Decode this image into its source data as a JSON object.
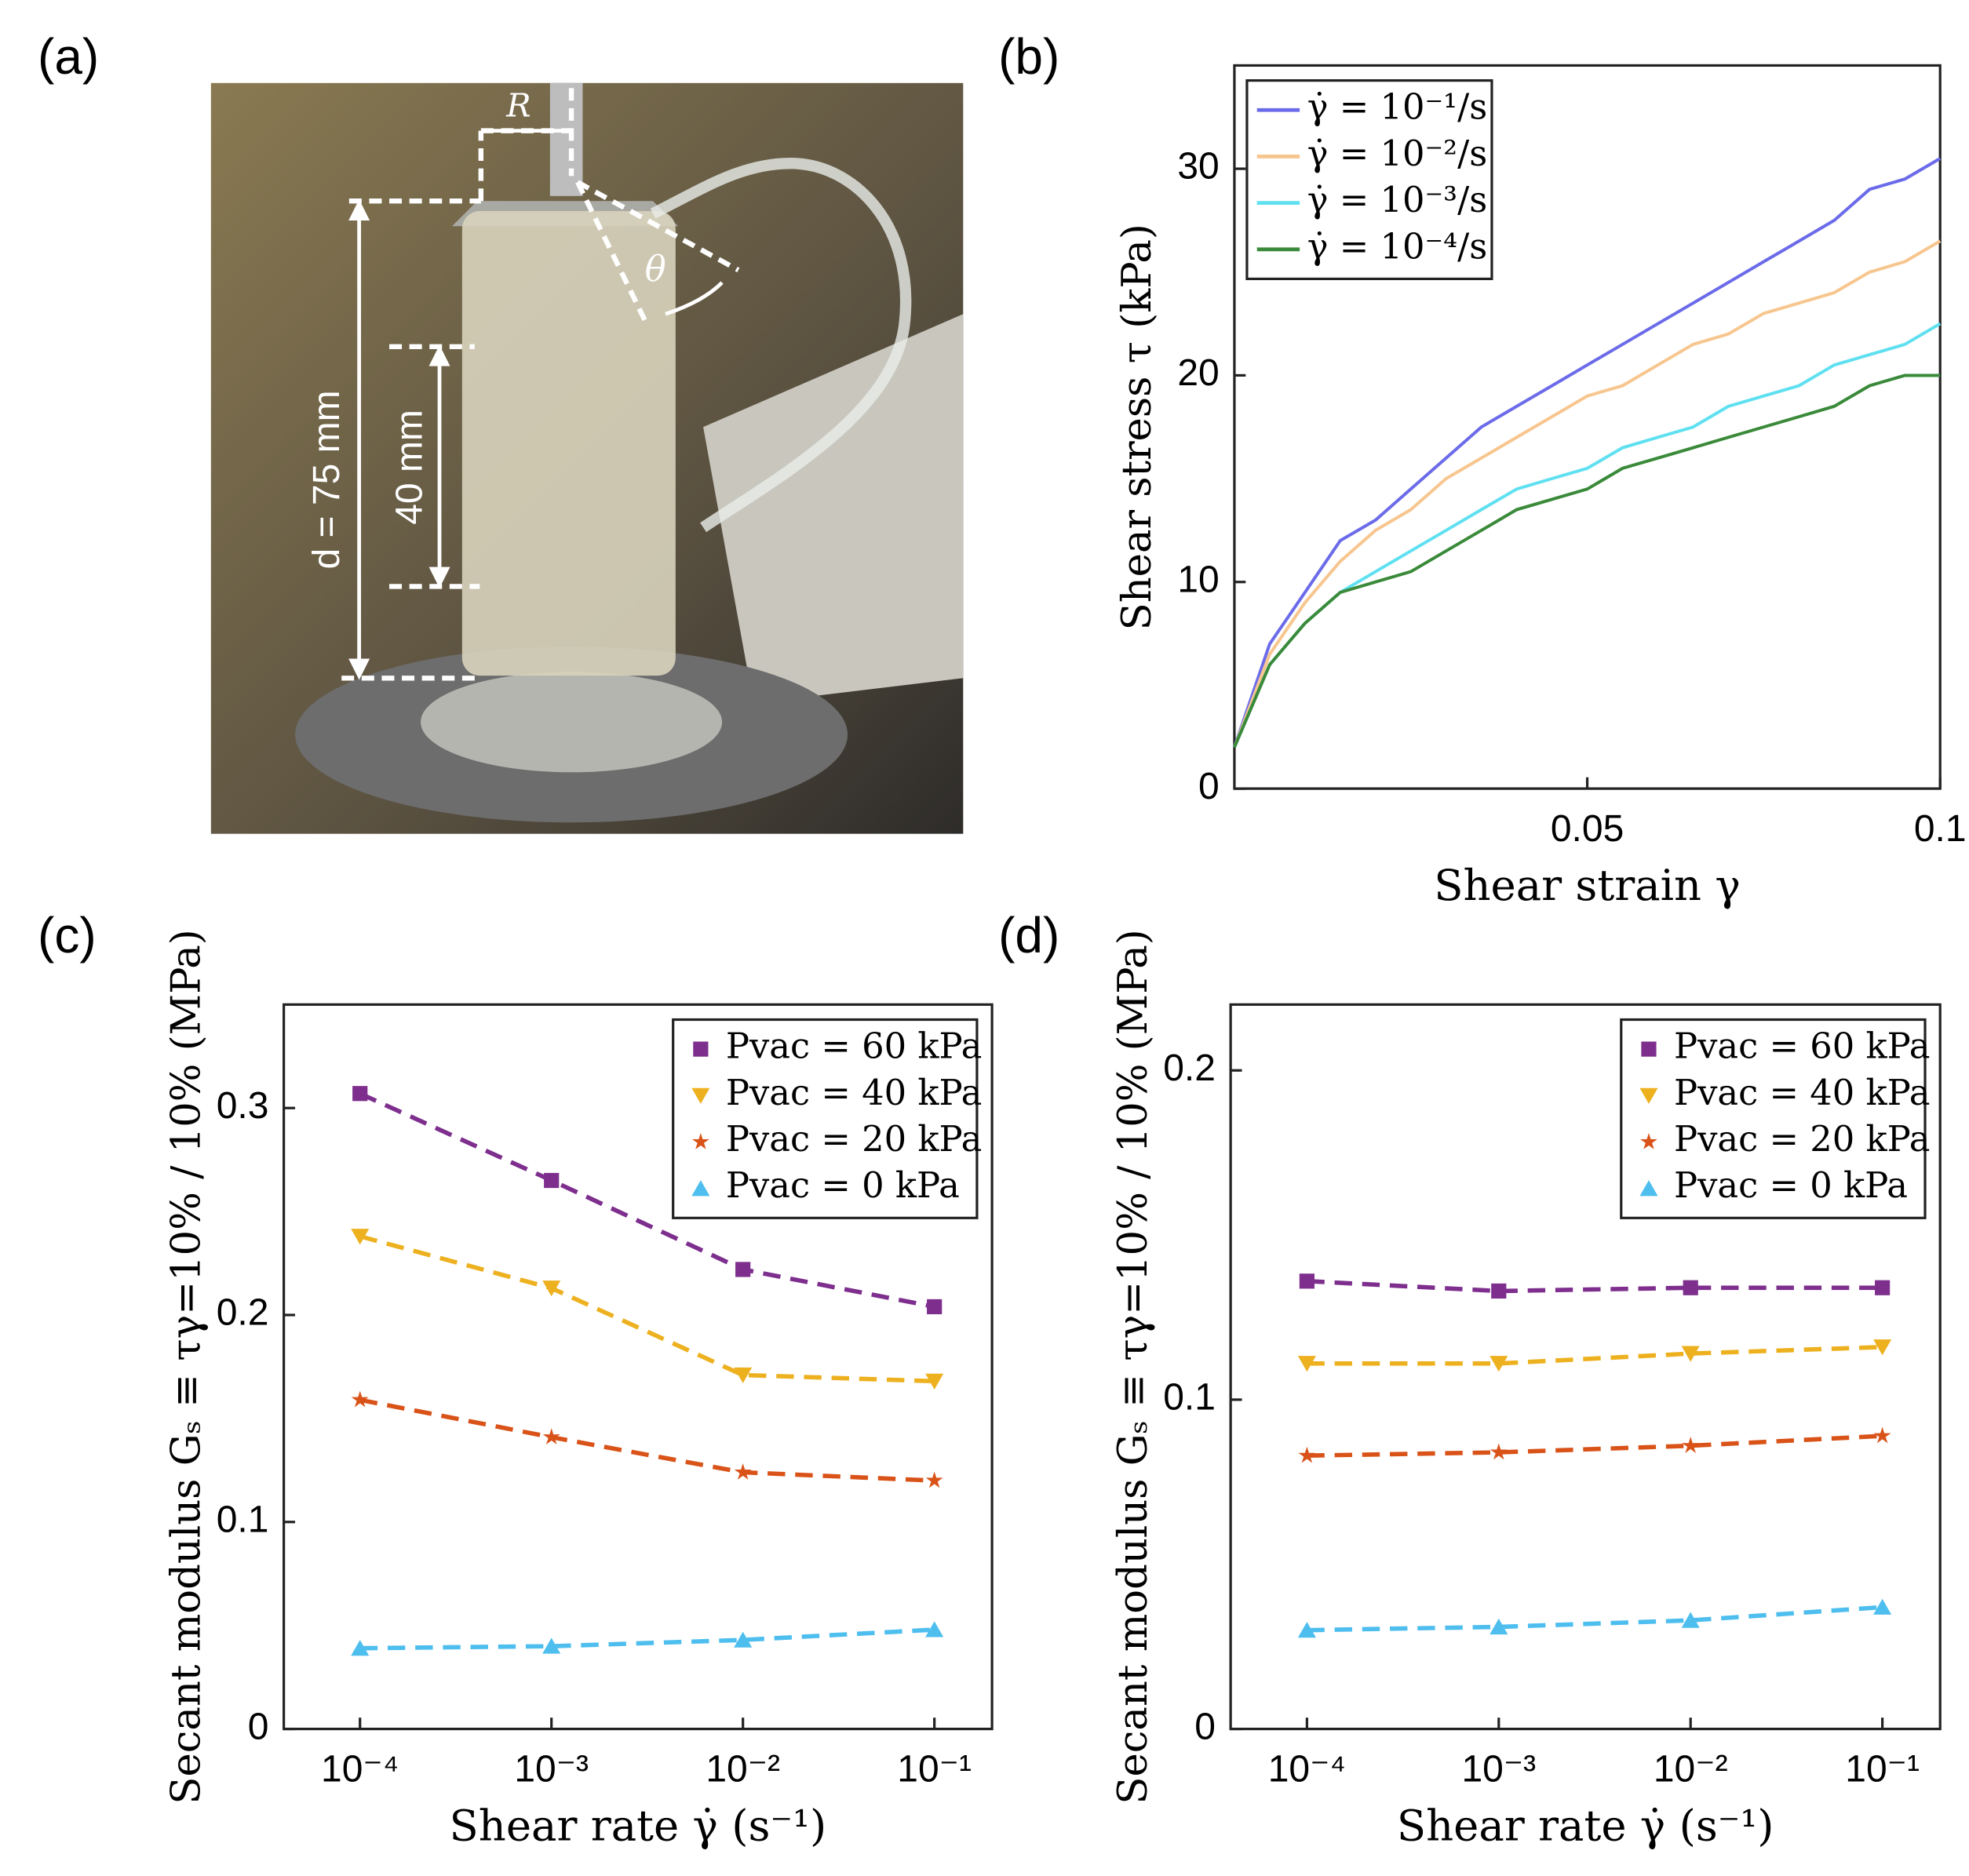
{
  "panels": [
    "(a)",
    "(b)",
    "(c)",
    "(d)"
  ],
  "photo": {
    "labels": [
      "R",
      "θ",
      "d = 75 mm",
      "40 mm"
    ]
  },
  "chart_data": [
    {
      "type": "line",
      "ylabel": "Shear stress τ (kPa)",
      "xlabel": "Shear strain γ",
      "x": [
        0,
        0.005,
        0.01,
        0.015,
        0.02,
        0.025,
        0.03,
        0.035,
        0.04,
        0.045,
        0.05,
        0.055,
        0.06,
        0.065,
        0.07,
        0.075,
        0.08,
        0.085,
        0.09,
        0.095,
        0.1
      ],
      "series": [
        {
          "name": "γ̇ = 10⁻¹/s",
          "color": "#6b6bea",
          "values": [
            2,
            7,
            9.5,
            12,
            13,
            14.5,
            16,
            17.5,
            18.5,
            19.5,
            20.5,
            21.5,
            22.5,
            23.5,
            24.5,
            25.5,
            26.5,
            27.5,
            29,
            29.5,
            30.5
          ]
        },
        {
          "name": "γ̇ = 10⁻²/s",
          "color": "#f7c68f",
          "values": [
            2,
            6.5,
            9,
            11,
            12.5,
            13.5,
            15,
            16,
            17,
            18,
            19,
            19.5,
            20.5,
            21.5,
            22,
            23,
            23.5,
            24,
            25,
            25.5,
            26.5
          ]
        },
        {
          "name": "γ̇ = 10⁻³/s",
          "color": "#5fe0f0",
          "values": [
            2,
            6,
            8,
            9.5,
            10.5,
            11.5,
            12.5,
            13.5,
            14.5,
            15,
            15.5,
            16.5,
            17,
            17.5,
            18.5,
            19,
            19.5,
            20.5,
            21,
            21.5,
            22.5
          ]
        },
        {
          "name": "γ̇ = 10⁻⁴/s",
          "color": "#3a8a3a",
          "values": [
            2,
            6,
            8,
            9.5,
            10,
            10.5,
            11.5,
            12.5,
            13.5,
            14,
            14.5,
            15.5,
            16,
            16.5,
            17,
            17.5,
            18,
            18.5,
            19.5,
            20,
            20
          ]
        }
      ],
      "xlim": [
        0,
        0.1
      ],
      "ylim": [
        0,
        35
      ],
      "xticks": [
        0.05,
        0.1
      ],
      "yticks": [
        0,
        10,
        20,
        30
      ],
      "legend": "upper left"
    },
    {
      "type": "line",
      "ylabel": "Secant modulus Gₛ ≡ τγ=10% / 10% (MPa)",
      "xlabel": "Shear rate γ̇  (s⁻¹)",
      "xlog": true,
      "dashed": true,
      "x": [
        0.0001,
        0.001,
        0.01,
        0.1
      ],
      "series": [
        {
          "name": "Pvac = 60 kPa",
          "color": "#7e2f8e",
          "marker": "square",
          "values": [
            0.307,
            0.265,
            0.222,
            0.204
          ]
        },
        {
          "name": "Pvac = 40 kPa",
          "color": "#edb120",
          "marker": "triangle-down",
          "values": [
            0.238,
            0.213,
            0.171,
            0.168
          ]
        },
        {
          "name": "Pvac = 20 kPa",
          "color": "#d95319",
          "marker": "star",
          "values": [
            0.159,
            0.141,
            0.124,
            0.12
          ]
        },
        {
          "name": "Pvac = 0 kPa",
          "color": "#4dbeee",
          "marker": "triangle-up",
          "values": [
            0.039,
            0.04,
            0.043,
            0.048
          ]
        }
      ],
      "xlim": [
        4e-05,
        0.2
      ],
      "ylim": [
        0,
        0.35
      ],
      "xticks": [
        {
          "value": 0.0001,
          "label": "10⁻⁴"
        },
        {
          "value": 0.001,
          "label": "10⁻³"
        },
        {
          "value": 0.01,
          "label": "10⁻²"
        },
        {
          "value": 0.1,
          "label": "10⁻¹"
        }
      ],
      "yticks": [
        0,
        0.1,
        0.2,
        0.3
      ],
      "legend": "upper right"
    },
    {
      "type": "line",
      "ylabel": "Secant modulus Gₛ ≡ τγ=10% / 10% (MPa)",
      "xlabel": "Shear rate γ̇  (s⁻¹)",
      "xlog": true,
      "dashed": true,
      "x": [
        0.0001,
        0.001,
        0.01,
        0.1
      ],
      "series": [
        {
          "name": "Pvac = 60 kPa",
          "color": "#7e2f8e",
          "marker": "square",
          "values": [
            0.136,
            0.133,
            0.134,
            0.134
          ]
        },
        {
          "name": "Pvac = 40 kPa",
          "color": "#edb120",
          "marker": "triangle-down",
          "values": [
            0.111,
            0.111,
            0.114,
            0.116
          ]
        },
        {
          "name": "Pvac = 20 kPa",
          "color": "#d95319",
          "marker": "star",
          "values": [
            0.083,
            0.084,
            0.086,
            0.089
          ]
        },
        {
          "name": "Pvac = 0 kPa",
          "color": "#4dbeee",
          "marker": "triangle-up",
          "values": [
            0.03,
            0.031,
            0.033,
            0.037
          ]
        }
      ],
      "xlim": [
        4e-05,
        0.2
      ],
      "ylim": [
        0,
        0.22
      ],
      "xticks": [
        {
          "value": 0.0001,
          "label": "10⁻⁴"
        },
        {
          "value": 0.001,
          "label": "10⁻³"
        },
        {
          "value": 0.01,
          "label": "10⁻²"
        },
        {
          "value": 0.1,
          "label": "10⁻¹"
        }
      ],
      "yticks": [
        0,
        0.1,
        0.2
      ],
      "legend": "upper right"
    }
  ]
}
